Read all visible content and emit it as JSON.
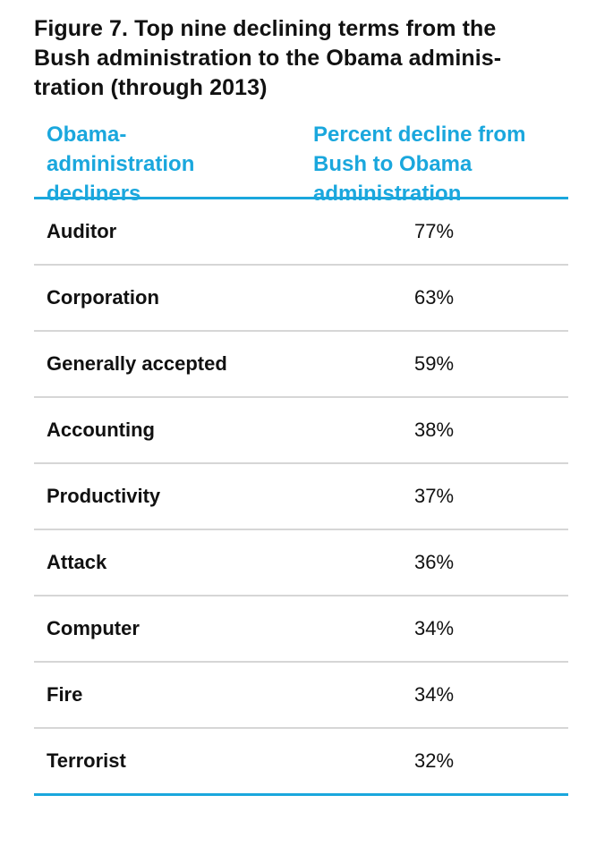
{
  "title_lines": [
    "Figure 7. Top nine declining terms from the",
    "Bush administration to the Obama adminis-",
    "tration (through 2013)"
  ],
  "columns": {
    "term_lines": [
      "Obama-",
      "administration",
      "decliners"
    ],
    "percent_lines": [
      "Percent decline from",
      "Bush to Obama",
      "administration"
    ]
  },
  "colors": {
    "accent": "#1aa7dd",
    "row_divider": "#d6d6d6",
    "text": "#111111"
  },
  "chart_data": {
    "type": "table",
    "title": "Figure 7. Top nine declining terms from the Bush administration to the Obama administration (through 2013)",
    "columns": [
      "Obama-administration decliners",
      "Percent decline from Bush to Obama administration"
    ],
    "rows": [
      {
        "term": "Auditor",
        "decline": "77%",
        "value": 77
      },
      {
        "term": "Corporation",
        "decline": "63%",
        "value": 63
      },
      {
        "term": "Generally accepted",
        "decline": "59%",
        "value": 59
      },
      {
        "term": "Accounting",
        "decline": "38%",
        "value": 38
      },
      {
        "term": "Productivity",
        "decline": "37%",
        "value": 37
      },
      {
        "term": "Attack",
        "decline": "36%",
        "value": 36
      },
      {
        "term": "Computer",
        "decline": "34%",
        "value": 34
      },
      {
        "term": "Fire",
        "decline": "34%",
        "value": 34
      },
      {
        "term": "Terrorist",
        "decline": "32%",
        "value": 32
      }
    ]
  }
}
